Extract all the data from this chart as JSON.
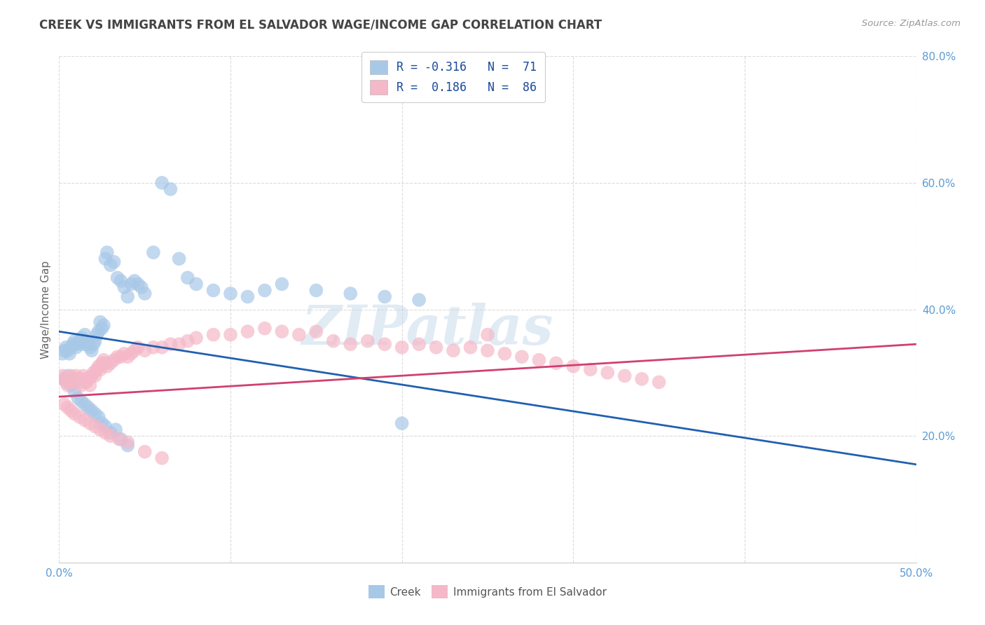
{
  "title": "CREEK VS IMMIGRANTS FROM EL SALVADOR WAGE/INCOME GAP CORRELATION CHART",
  "source": "Source: ZipAtlas.com",
  "ylabel": "Wage/Income Gap",
  "xlim": [
    0.0,
    0.5
  ],
  "ylim": [
    0.0,
    0.8
  ],
  "xticks": [
    0.0,
    0.1,
    0.2,
    0.3,
    0.4,
    0.5
  ],
  "yticks": [
    0.0,
    0.2,
    0.4,
    0.6,
    0.8
  ],
  "xticklabels": [
    "0.0%",
    "",
    "",
    "",
    "",
    "50.0%"
  ],
  "yticklabels": [
    "",
    "20.0%",
    "40.0%",
    "60.0%",
    "80.0%"
  ],
  "creek_color": "#a8c8e8",
  "salvador_color": "#f4b8c8",
  "creek_R": -0.316,
  "creek_N": 71,
  "salvador_R": 0.186,
  "salvador_N": 86,
  "creek_line_color": "#2060b0",
  "salvador_line_color": "#d04070",
  "creek_line_y0": 0.365,
  "creek_line_y1": 0.155,
  "salvador_line_y0": 0.262,
  "salvador_line_y1": 0.345,
  "watermark_text": "ZIPatlas",
  "background_color": "#ffffff",
  "grid_color": "#cccccc",
  "title_color": "#444444",
  "axis_color": "#5b9bd5",
  "legend_text_color": "#1a4a9a",
  "creek_x": [
    0.002,
    0.003,
    0.004,
    0.005,
    0.006,
    0.007,
    0.008,
    0.009,
    0.01,
    0.011,
    0.012,
    0.013,
    0.014,
    0.015,
    0.016,
    0.017,
    0.018,
    0.019,
    0.02,
    0.021,
    0.022,
    0.023,
    0.024,
    0.025,
    0.026,
    0.027,
    0.028,
    0.03,
    0.032,
    0.034,
    0.036,
    0.038,
    0.04,
    0.042,
    0.044,
    0.046,
    0.048,
    0.05,
    0.055,
    0.06,
    0.065,
    0.07,
    0.075,
    0.08,
    0.09,
    0.1,
    0.11,
    0.12,
    0.13,
    0.15,
    0.17,
    0.19,
    0.21,
    0.003,
    0.005,
    0.007,
    0.009,
    0.011,
    0.013,
    0.015,
    0.017,
    0.019,
    0.021,
    0.023,
    0.025,
    0.027,
    0.03,
    0.033,
    0.036,
    0.04,
    0.2
  ],
  "creek_y": [
    0.33,
    0.335,
    0.34,
    0.335,
    0.33,
    0.34,
    0.345,
    0.35,
    0.34,
    0.345,
    0.35,
    0.355,
    0.345,
    0.36,
    0.35,
    0.345,
    0.34,
    0.335,
    0.345,
    0.35,
    0.36,
    0.365,
    0.38,
    0.37,
    0.375,
    0.48,
    0.49,
    0.47,
    0.475,
    0.45,
    0.445,
    0.435,
    0.42,
    0.44,
    0.445,
    0.44,
    0.435,
    0.425,
    0.49,
    0.6,
    0.59,
    0.48,
    0.45,
    0.44,
    0.43,
    0.425,
    0.42,
    0.43,
    0.44,
    0.43,
    0.425,
    0.42,
    0.415,
    0.29,
    0.295,
    0.28,
    0.27,
    0.26,
    0.255,
    0.25,
    0.245,
    0.24,
    0.235,
    0.23,
    0.22,
    0.215,
    0.205,
    0.21,
    0.195,
    0.185,
    0.22
  ],
  "salvador_x": [
    0.002,
    0.003,
    0.004,
    0.005,
    0.006,
    0.007,
    0.008,
    0.009,
    0.01,
    0.011,
    0.012,
    0.013,
    0.014,
    0.015,
    0.016,
    0.017,
    0.018,
    0.019,
    0.02,
    0.021,
    0.022,
    0.023,
    0.024,
    0.025,
    0.026,
    0.027,
    0.028,
    0.03,
    0.032,
    0.034,
    0.036,
    0.038,
    0.04,
    0.042,
    0.044,
    0.046,
    0.05,
    0.055,
    0.06,
    0.065,
    0.07,
    0.075,
    0.08,
    0.09,
    0.1,
    0.11,
    0.12,
    0.13,
    0.14,
    0.15,
    0.16,
    0.17,
    0.18,
    0.19,
    0.2,
    0.21,
    0.22,
    0.23,
    0.24,
    0.25,
    0.26,
    0.27,
    0.28,
    0.29,
    0.3,
    0.31,
    0.32,
    0.33,
    0.34,
    0.35,
    0.003,
    0.005,
    0.007,
    0.009,
    0.012,
    0.015,
    0.018,
    0.021,
    0.024,
    0.027,
    0.03,
    0.035,
    0.04,
    0.05,
    0.06,
    0.25
  ],
  "salvador_y": [
    0.295,
    0.29,
    0.285,
    0.28,
    0.29,
    0.295,
    0.285,
    0.29,
    0.295,
    0.29,
    0.285,
    0.28,
    0.295,
    0.29,
    0.285,
    0.29,
    0.28,
    0.295,
    0.3,
    0.295,
    0.305,
    0.31,
    0.305,
    0.315,
    0.32,
    0.315,
    0.31,
    0.315,
    0.32,
    0.325,
    0.325,
    0.33,
    0.325,
    0.33,
    0.335,
    0.34,
    0.335,
    0.34,
    0.34,
    0.345,
    0.345,
    0.35,
    0.355,
    0.36,
    0.36,
    0.365,
    0.37,
    0.365,
    0.36,
    0.365,
    0.35,
    0.345,
    0.35,
    0.345,
    0.34,
    0.345,
    0.34,
    0.335,
    0.34,
    0.335,
    0.33,
    0.325,
    0.32,
    0.315,
    0.31,
    0.305,
    0.3,
    0.295,
    0.29,
    0.285,
    0.25,
    0.245,
    0.24,
    0.235,
    0.23,
    0.225,
    0.22,
    0.215,
    0.21,
    0.205,
    0.2,
    0.195,
    0.19,
    0.175,
    0.165,
    0.36
  ]
}
